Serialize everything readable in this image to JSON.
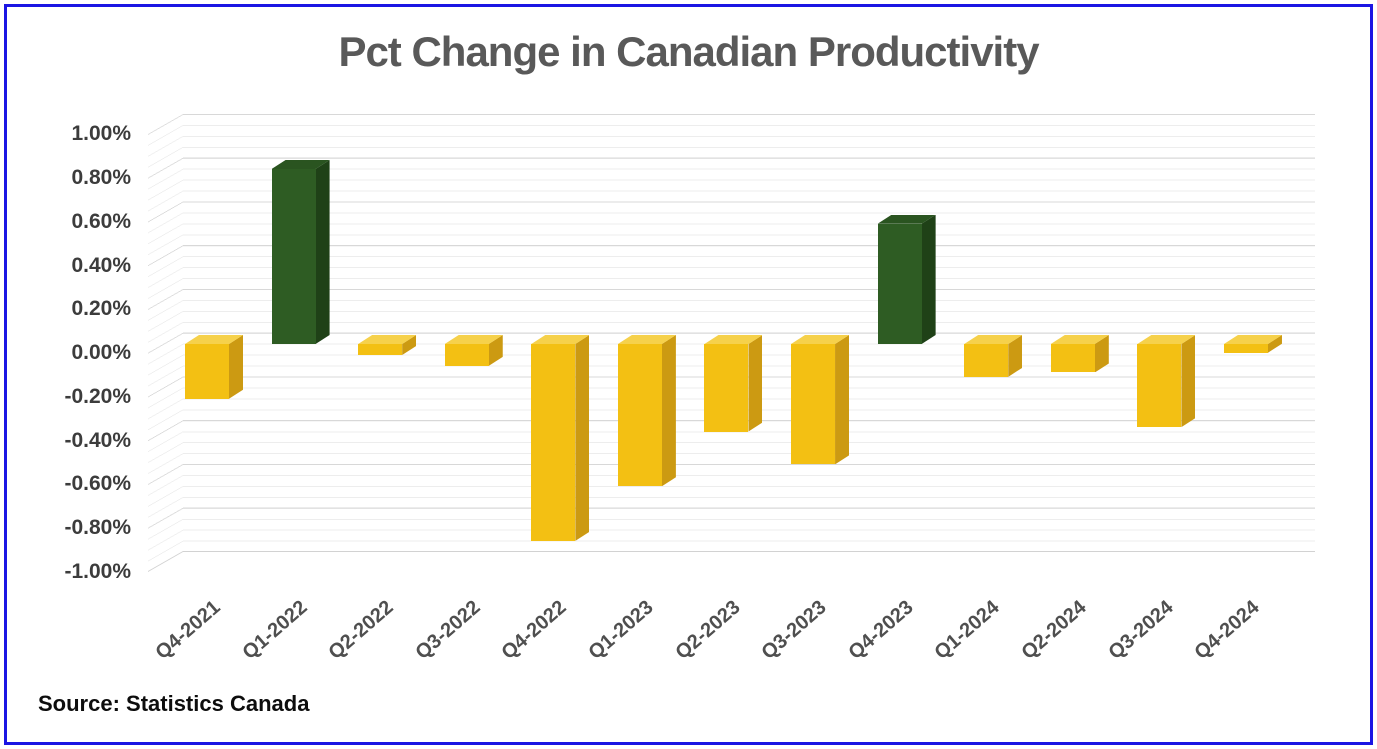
{
  "title": "Pct Change in Canadian Productivity",
  "source": "Source: Statistics Canada",
  "y_axis": {
    "ticks": [
      "1.00%",
      "0.80%",
      "0.60%",
      "0.40%",
      "0.20%",
      "0.00%",
      "-0.20%",
      "-0.40%",
      "-0.60%",
      "-0.80%",
      "-1.00%"
    ]
  },
  "colors": {
    "frame_border": "#1B15E3",
    "title_text": "#595959",
    "axis_text": "#3C3C3C",
    "x_axis_text": "#4F4F4F",
    "gridline_major": "#D8D8D8",
    "gridline_minor": "#EDEDED",
    "positive_front": "#2E5C23",
    "positive_top": "#2A5420",
    "positive_side": "#1F4117",
    "negative_front": "#F3C013",
    "negative_top": "#F6D14B",
    "negative_side": "#CC9A12"
  },
  "chart_data": {
    "type": "bar",
    "style": "3d-column",
    "title": "Pct Change in Canadian Productivity",
    "categories": [
      "Q4-2021",
      "Q1-2022",
      "Q2-2022",
      "Q3-2022",
      "Q4-2022",
      "Q1-2023",
      "Q2-2023",
      "Q3-2023",
      "Q4-2023",
      "Q1-2024",
      "Q2-2024",
      "Q3-2024",
      "Q4-2024"
    ],
    "values": [
      -0.25,
      0.8,
      -0.05,
      -0.1,
      -0.9,
      -0.65,
      -0.4,
      -0.55,
      0.55,
      -0.15,
      -0.13,
      -0.38,
      -0.04
    ],
    "unit": "percent",
    "xlabel": "",
    "ylabel": "",
    "ylim": [
      -1.0,
      1.0
    ],
    "ytick_step": 0.2,
    "ytick_labels": [
      "1.00%",
      "0.80%",
      "0.60%",
      "0.40%",
      "0.20%",
      "0.00%",
      "-0.20%",
      "-0.40%",
      "-0.60%",
      "-0.80%",
      "-1.00%"
    ],
    "grid": "horizontal major lines every 0.20% with minor lines every 0.05%",
    "legend": "none",
    "color_rule": {
      "positive": "dark-green",
      "negative": "gold"
    },
    "annotations": [
      "Source: Statistics Canada"
    ]
  }
}
